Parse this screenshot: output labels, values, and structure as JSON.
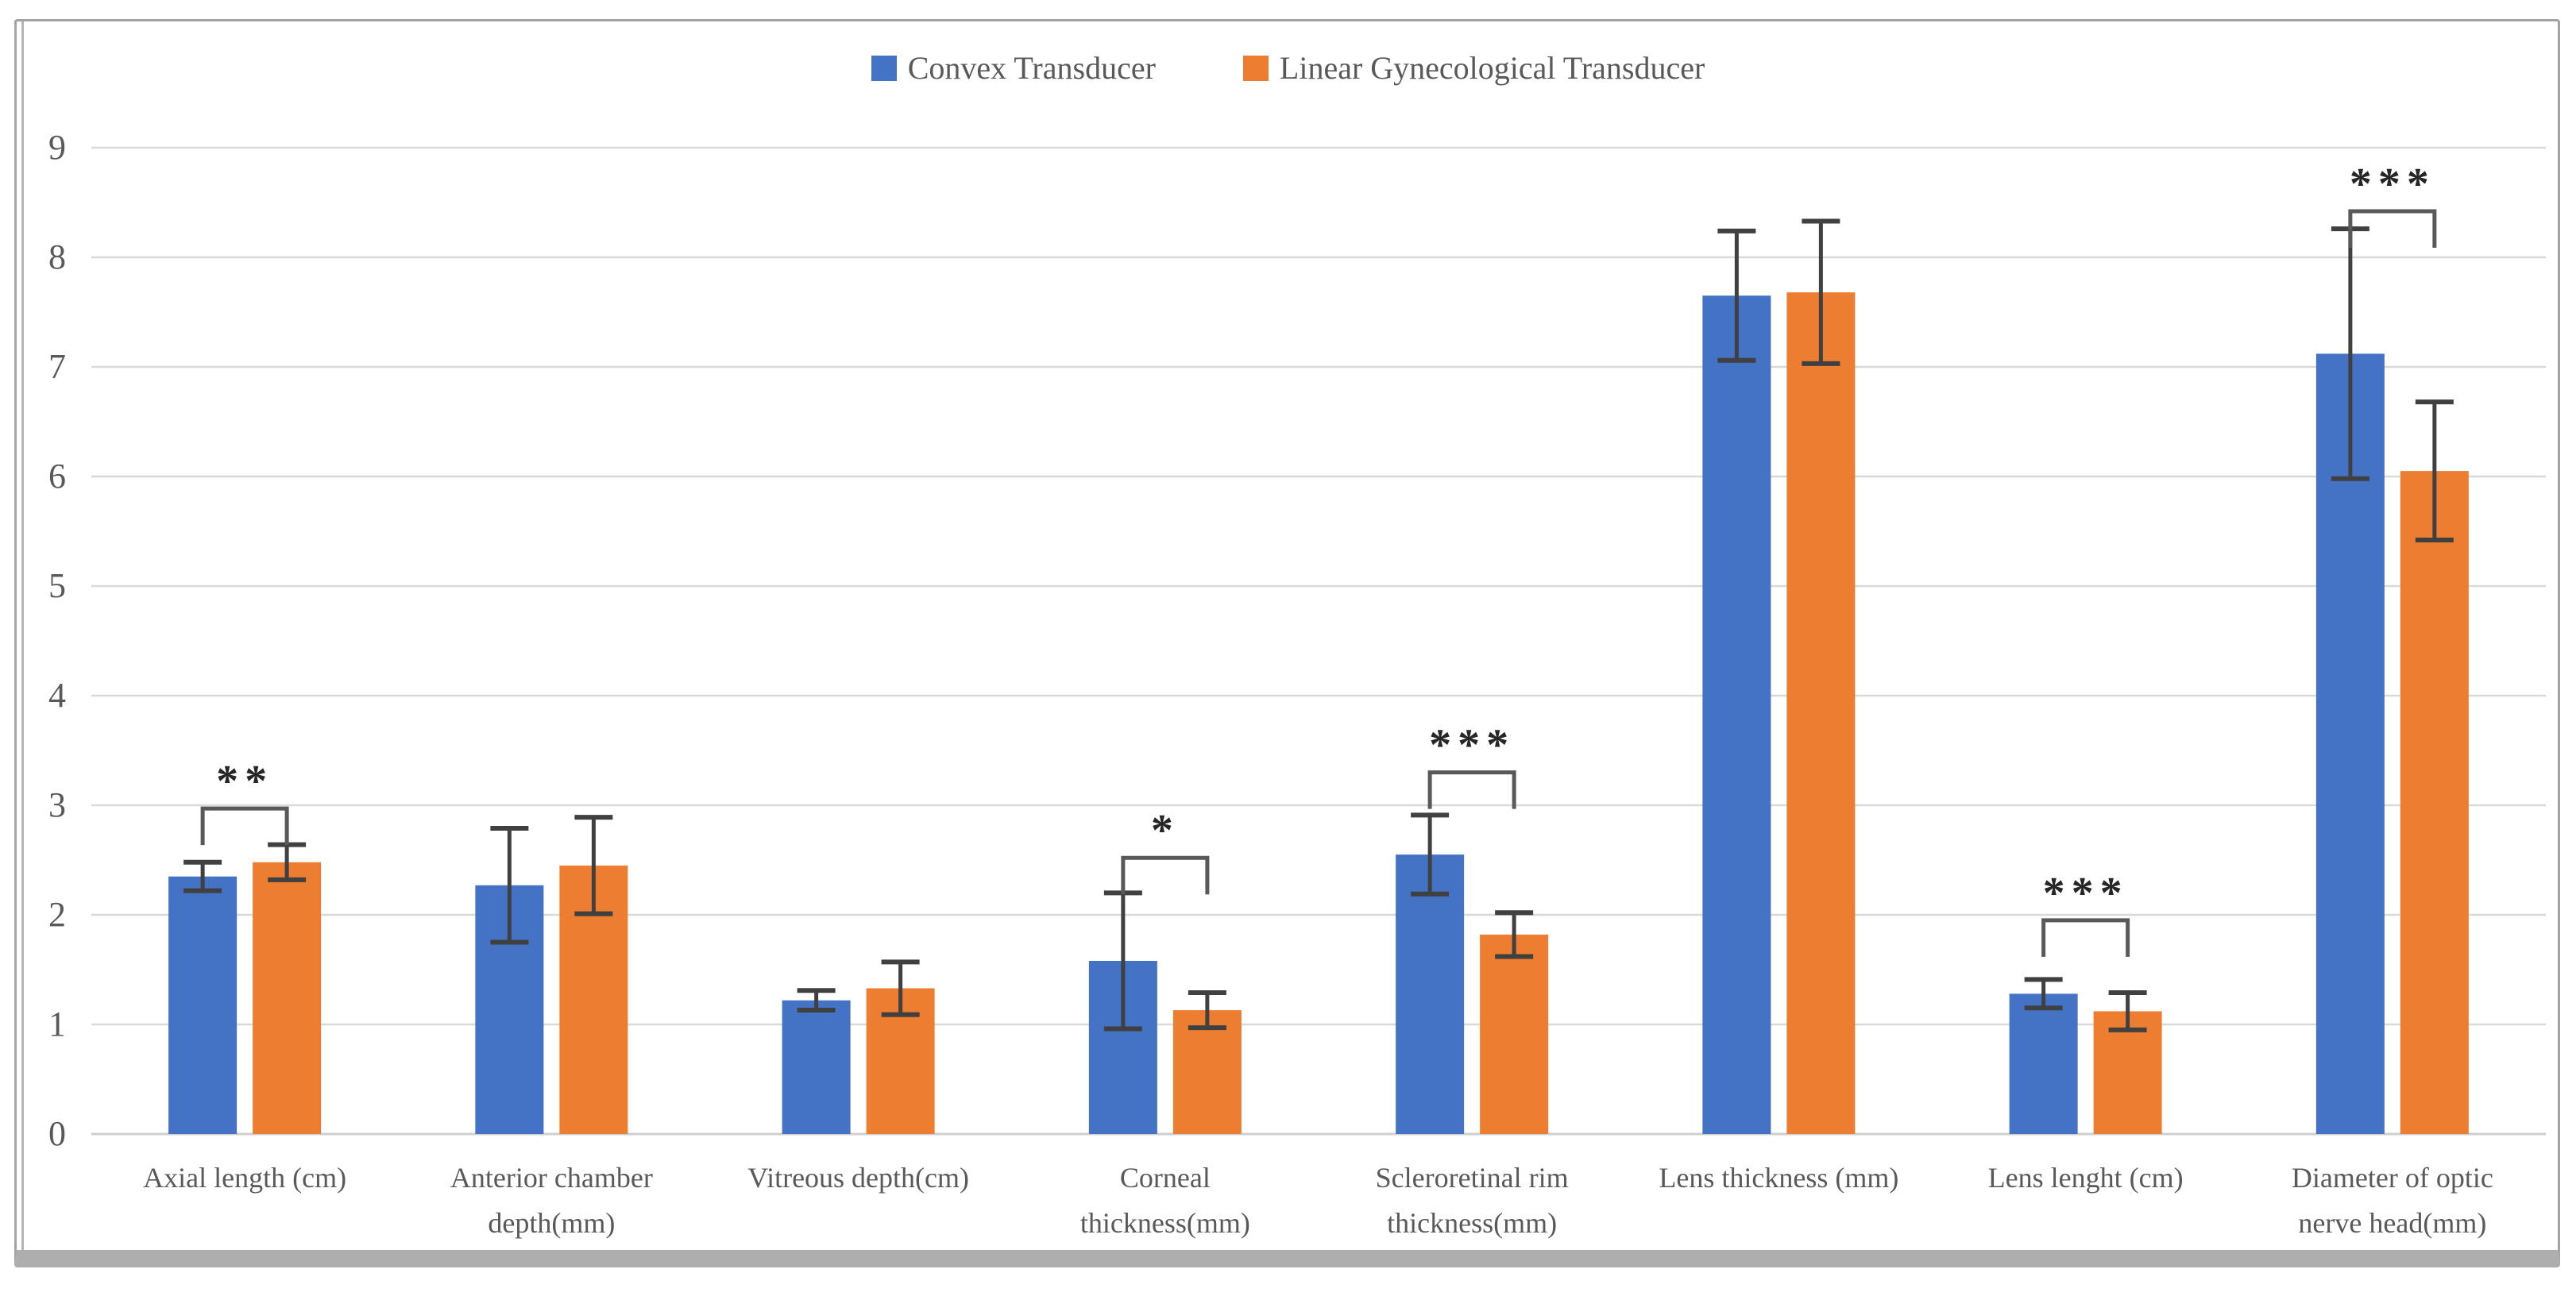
{
  "figure": {
    "type_note": "grouped bar chart with error bars and significance brackets",
    "background": "#ffffff",
    "frame_border_color": "#a3a3a3"
  },
  "legend": {
    "position": "top-center",
    "items": [
      {
        "label": "Convex Transducer",
        "color": "#4472C4"
      },
      {
        "label": "Linear Gynecological Transducer",
        "color": "#ED7D31"
      }
    ]
  },
  "colors": {
    "convex_bar": "#4472C4",
    "linear_bar": "#ED7D31",
    "gridline": "#d9d9d9",
    "baseline": "#cfcfcf",
    "axis_text": "#595959",
    "error_bar": "#404040",
    "bracket": "#595959",
    "stars": "#262626"
  },
  "chart_data": {
    "type": "bar",
    "title": "",
    "xlabel": "",
    "ylabel": "",
    "grid": true,
    "legend_position": "top",
    "categories": [
      "Axial length (cm)",
      "Anterior chamber depth(mm)",
      "Vitreous depth(cm)",
      "Corneal thickness(mm)",
      "Scleroretinal rim thickness(mm)",
      "Lens thickness (mm)",
      "Lens lenght (cm)",
      "Diameter of optic nerve head(mm)"
    ],
    "category_lines": [
      [
        "Axial length (cm)"
      ],
      [
        "Anterior chamber",
        "depth(mm)"
      ],
      [
        "Vitreous depth(cm)"
      ],
      [
        "Corneal",
        "thickness(mm)"
      ],
      [
        "Scleroretinal rim",
        "thickness(mm)"
      ],
      [
        "Lens thickness (mm)"
      ],
      [
        "Lens lenght (cm)"
      ],
      [
        "Diameter of optic",
        "nerve head(mm)"
      ]
    ],
    "series": [
      {
        "name": "Convex Transducer",
        "color": "#4472C4",
        "values": [
          2.35,
          2.27,
          1.22,
          1.58,
          2.55,
          7.65,
          1.28,
          7.12
        ],
        "errors": [
          0.13,
          0.52,
          0.09,
          0.62,
          0.36,
          0.59,
          0.13,
          1.14
        ]
      },
      {
        "name": "Linear Gynecological Transducer",
        "color": "#ED7D31",
        "values": [
          2.48,
          2.45,
          1.33,
          1.13,
          1.82,
          7.68,
          1.12,
          6.05
        ],
        "errors": [
          0.16,
          0.44,
          0.24,
          0.16,
          0.2,
          0.65,
          0.17,
          0.63
        ]
      }
    ],
    "significance": [
      {
        "category_index": 0,
        "label": "**",
        "bracket_y": 2.97
      },
      {
        "category_index": 3,
        "label": "*",
        "bracket_y": 2.52
      },
      {
        "category_index": 4,
        "label": "***",
        "bracket_y": 3.3
      },
      {
        "category_index": 6,
        "label": "***",
        "bracket_y": 1.95
      },
      {
        "category_index": 7,
        "label": "***",
        "bracket_y": 8.42
      }
    ],
    "y_axis": {
      "min": 0,
      "max": 9,
      "step": 1,
      "tick_labels": [
        "0",
        "1",
        "2",
        "3",
        "4",
        "5",
        "6",
        "7",
        "8",
        "9"
      ]
    }
  }
}
